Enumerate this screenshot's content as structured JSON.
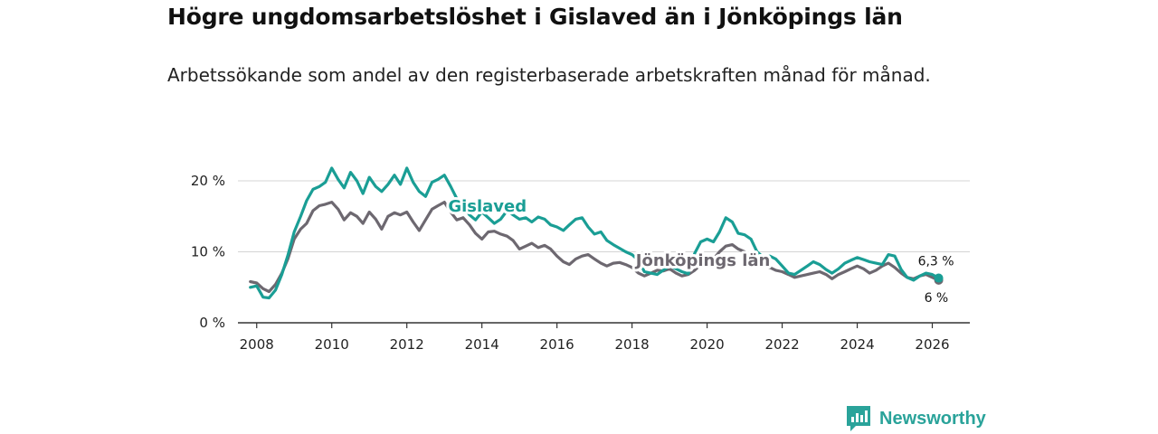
{
  "title": "Högre ungdomsarbetslöshet i Gislaved än i Jönköpings län",
  "subtitle": "Arbetssökande som andel av den registerbaserade arbetskraften månad för månad.",
  "brand": {
    "name": "Newsworthy",
    "color": "#2aa39a"
  },
  "chart_data": {
    "type": "line",
    "title": "Högre ungdomsarbetslöshet i Gislaved än i Jönköpings län",
    "xlabel": "",
    "ylabel": "",
    "xlim": [
      2007.5,
      2027.0
    ],
    "ylim": [
      0,
      20
    ],
    "grid": true,
    "x_ticks": [
      {
        "value": 2008,
        "label": "2008"
      },
      {
        "value": 2010,
        "label": "2010"
      },
      {
        "value": 2012,
        "label": "2012"
      },
      {
        "value": 2014,
        "label": "2014"
      },
      {
        "value": 2016,
        "label": "2016"
      },
      {
        "value": 2018,
        "label": "2018"
      },
      {
        "value": 2020,
        "label": "2020"
      },
      {
        "value": 2022,
        "label": "2022"
      },
      {
        "value": 2024,
        "label": "2024"
      },
      {
        "value": 2026,
        "label": "2026"
      }
    ],
    "y_ticks": [
      {
        "value": 0,
        "label": "0 %"
      },
      {
        "value": 10,
        "label": "10 %"
      },
      {
        "value": 20,
        "label": "20 %"
      }
    ],
    "series": [
      {
        "name": "Gislaved",
        "color": "#1a9e95",
        "end_label": "6,3 %",
        "label_at": [
          2013.1,
          15.7
        ],
        "x": [
          2007.83,
          2008.0,
          2008.17,
          2008.33,
          2008.5,
          2008.67,
          2008.83,
          2009.0,
          2009.17,
          2009.33,
          2009.5,
          2009.67,
          2009.83,
          2010.0,
          2010.17,
          2010.33,
          2010.5,
          2010.67,
          2010.83,
          2011.0,
          2011.17,
          2011.33,
          2011.5,
          2011.67,
          2011.83,
          2012.0,
          2012.17,
          2012.33,
          2012.5,
          2012.67,
          2012.83,
          2013.0,
          2013.17,
          2013.33,
          2013.5,
          2013.67,
          2013.83,
          2014.0,
          2014.17,
          2014.33,
          2014.5,
          2014.67,
          2014.83,
          2015.0,
          2015.17,
          2015.33,
          2015.5,
          2015.67,
          2015.83,
          2016.0,
          2016.17,
          2016.33,
          2016.5,
          2016.67,
          2016.83,
          2017.0,
          2017.17,
          2017.33,
          2017.5,
          2017.67,
          2017.83,
          2018.0,
          2018.17,
          2018.33,
          2018.5,
          2018.67,
          2018.83,
          2019.0,
          2019.17,
          2019.33,
          2019.5,
          2019.67,
          2019.83,
          2020.0,
          2020.17,
          2020.33,
          2020.5,
          2020.67,
          2020.83,
          2021.0,
          2021.17,
          2021.33,
          2021.5,
          2021.67,
          2021.83,
          2022.0,
          2022.17,
          2022.33,
          2022.5,
          2022.67,
          2022.83,
          2023.0,
          2023.17,
          2023.33,
          2023.5,
          2023.67,
          2023.83,
          2024.0,
          2024.17,
          2024.33,
          2024.5,
          2024.67,
          2024.83,
          2025.0,
          2025.17,
          2025.33,
          2025.5,
          2025.67,
          2025.83,
          2026.0,
          2026.17
        ],
        "values": [
          5.0,
          5.2,
          3.6,
          3.5,
          4.6,
          6.8,
          9.5,
          12.8,
          15.0,
          17.2,
          18.8,
          19.2,
          19.8,
          21.8,
          20.2,
          19.0,
          21.2,
          20.0,
          18.2,
          20.5,
          19.2,
          18.5,
          19.5,
          20.8,
          19.5,
          21.8,
          19.8,
          18.5,
          17.8,
          19.8,
          20.2,
          20.8,
          19.2,
          17.5,
          16.5,
          15.2,
          14.5,
          15.6,
          14.8,
          14.0,
          14.6,
          15.8,
          15.2,
          14.6,
          14.8,
          14.2,
          14.9,
          14.6,
          13.8,
          13.5,
          13.0,
          13.8,
          14.6,
          14.8,
          13.5,
          12.5,
          12.8,
          11.6,
          11.0,
          10.5,
          10.0,
          9.6,
          8.8,
          7.2,
          7.0,
          6.8,
          7.4,
          8.0,
          7.6,
          7.2,
          6.9,
          9.8,
          11.4,
          11.8,
          11.4,
          12.8,
          14.8,
          14.2,
          12.6,
          12.4,
          11.8,
          10.0,
          9.2,
          9.4,
          9.0,
          8.0,
          7.0,
          6.8,
          7.4,
          8.0,
          8.6,
          8.2,
          7.5,
          7.0,
          7.6,
          8.4,
          8.8,
          9.2,
          8.9,
          8.6,
          8.4,
          8.2,
          9.6,
          9.4,
          7.5,
          6.4,
          6.0,
          6.6,
          7.0,
          6.8,
          6.3
        ]
      },
      {
        "name": "Jönköpings län",
        "color": "#6d6870",
        "end_label": "6 %",
        "label_at": [
          2018.1,
          8.0
        ],
        "x": [
          2007.83,
          2008.0,
          2008.17,
          2008.33,
          2008.5,
          2008.67,
          2008.83,
          2009.0,
          2009.17,
          2009.33,
          2009.5,
          2009.67,
          2009.83,
          2010.0,
          2010.17,
          2010.33,
          2010.5,
          2010.67,
          2010.83,
          2011.0,
          2011.17,
          2011.33,
          2011.5,
          2011.67,
          2011.83,
          2012.0,
          2012.17,
          2012.33,
          2012.5,
          2012.67,
          2012.83,
          2013.0,
          2013.17,
          2013.33,
          2013.5,
          2013.67,
          2013.83,
          2014.0,
          2014.17,
          2014.33,
          2014.5,
          2014.67,
          2014.83,
          2015.0,
          2015.17,
          2015.33,
          2015.5,
          2015.67,
          2015.83,
          2016.0,
          2016.17,
          2016.33,
          2016.5,
          2016.67,
          2016.83,
          2017.0,
          2017.17,
          2017.33,
          2017.5,
          2017.67,
          2017.83,
          2018.0,
          2018.17,
          2018.33,
          2018.5,
          2018.67,
          2018.83,
          2019.0,
          2019.17,
          2019.33,
          2019.5,
          2019.67,
          2019.83,
          2020.0,
          2020.17,
          2020.33,
          2020.5,
          2020.67,
          2020.83,
          2021.0,
          2021.17,
          2021.33,
          2021.5,
          2021.67,
          2021.83,
          2022.0,
          2022.17,
          2022.33,
          2022.5,
          2022.67,
          2022.83,
          2023.0,
          2023.17,
          2023.33,
          2023.5,
          2023.67,
          2023.83,
          2024.0,
          2024.17,
          2024.33,
          2024.5,
          2024.67,
          2024.83,
          2025.0,
          2025.17,
          2025.33,
          2025.5,
          2025.67,
          2025.83,
          2026.0,
          2026.17
        ],
        "values": [
          5.8,
          5.6,
          4.8,
          4.4,
          5.4,
          7.0,
          9.0,
          11.8,
          13.2,
          14.0,
          15.8,
          16.5,
          16.7,
          17.0,
          16.0,
          14.5,
          15.5,
          15.0,
          14.0,
          15.6,
          14.6,
          13.2,
          15.0,
          15.5,
          15.2,
          15.6,
          14.2,
          13.0,
          14.5,
          16.0,
          16.5,
          17.0,
          15.6,
          14.5,
          14.8,
          13.8,
          12.6,
          11.8,
          12.8,
          12.9,
          12.5,
          12.2,
          11.6,
          10.4,
          10.8,
          11.2,
          10.6,
          10.9,
          10.4,
          9.4,
          8.6,
          8.2,
          9.0,
          9.4,
          9.6,
          9.0,
          8.4,
          8.0,
          8.4,
          8.5,
          8.2,
          7.8,
          7.0,
          6.6,
          7.0,
          7.4,
          7.3,
          7.6,
          7.0,
          6.6,
          6.8,
          7.4,
          8.2,
          8.6,
          9.0,
          10.0,
          10.8,
          11.0,
          10.4,
          10.0,
          9.4,
          8.6,
          8.0,
          7.8,
          7.4,
          7.2,
          6.8,
          6.4,
          6.6,
          6.8,
          7.0,
          7.2,
          6.8,
          6.2,
          6.8,
          7.2,
          7.6,
          8.0,
          7.6,
          7.0,
          7.4,
          8.0,
          8.4,
          7.8,
          7.0,
          6.4,
          6.2,
          6.6,
          6.8,
          6.4,
          6.0
        ]
      }
    ]
  }
}
